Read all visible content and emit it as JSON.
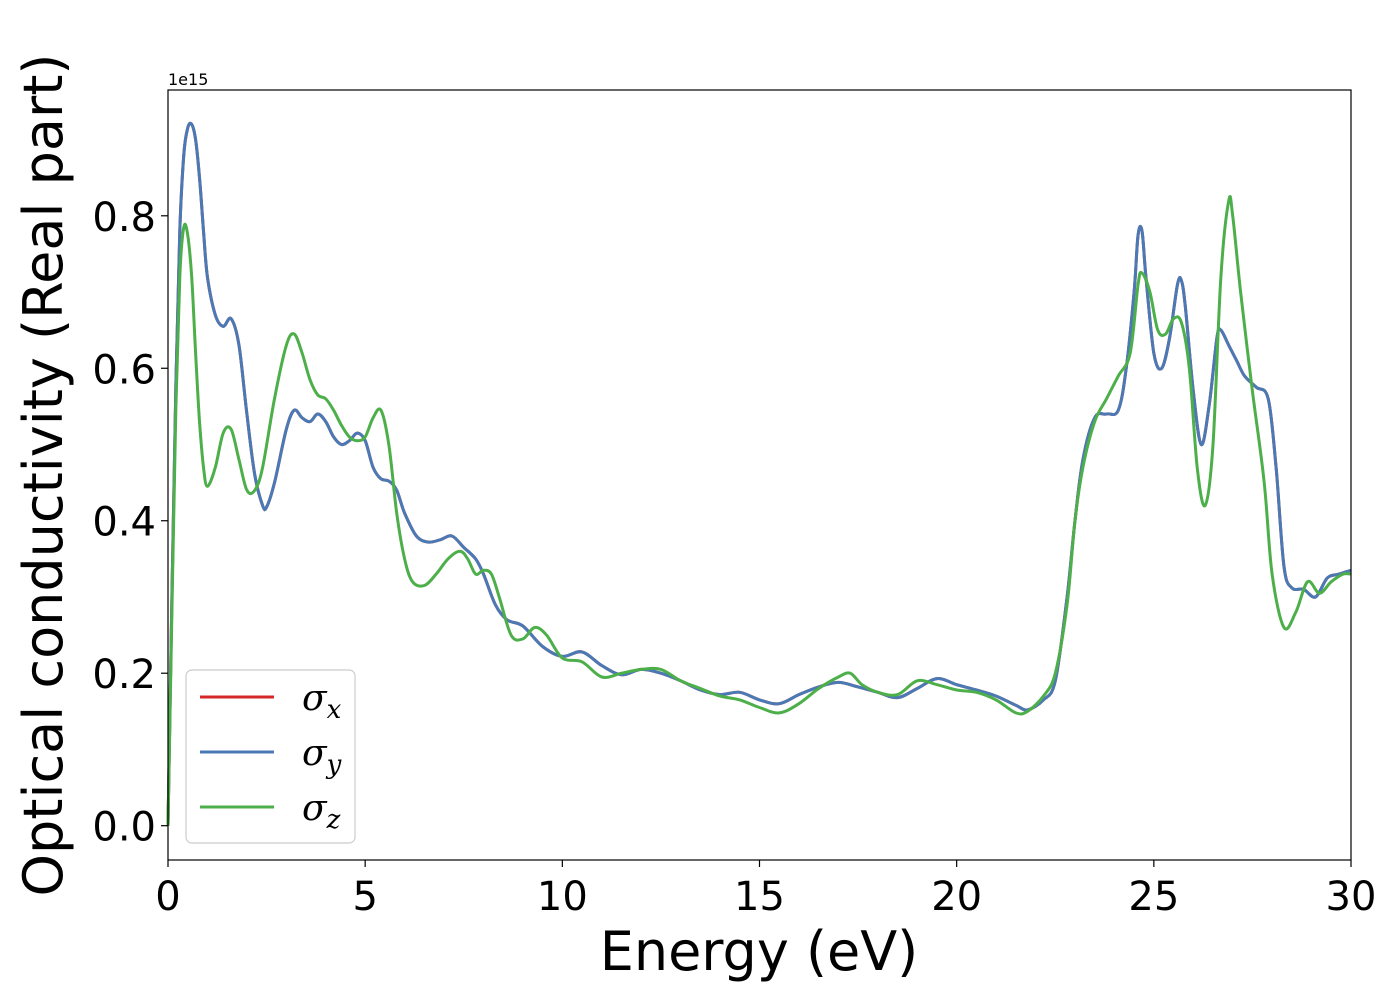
{
  "chart_data": {
    "type": "line",
    "xlabel": "Energy (eV)",
    "ylabel": "Optical conductivity (Real part)",
    "y_offset_label": "1e15",
    "xlim": [
      0,
      30
    ],
    "ylim": [
      -0.045,
      0.965
    ],
    "x_ticks": [
      0,
      5,
      10,
      15,
      20,
      25,
      30
    ],
    "x_tick_labels": [
      "0",
      "5",
      "10",
      "15",
      "20",
      "25",
      "30"
    ],
    "y_ticks": [
      0.0,
      0.2,
      0.4,
      0.6,
      0.8
    ],
    "y_tick_labels": [
      "0.0",
      "0.2",
      "0.4",
      "0.6",
      "0.8"
    ],
    "grid": false,
    "legend_position": "lower-left",
    "series": [
      {
        "name": "σx",
        "symbol": "σ",
        "subscript": "x",
        "color": "#d62728",
        "x": [
          0,
          0.1,
          0.2,
          0.3,
          0.4,
          0.5,
          0.6,
          0.7,
          0.8,
          0.9,
          1.0,
          1.2,
          1.4,
          1.6,
          1.8,
          2.0,
          2.2,
          2.4,
          2.5,
          2.7,
          3.0,
          3.2,
          3.4,
          3.6,
          3.8,
          4.0,
          4.2,
          4.4,
          4.6,
          4.8,
          5.0,
          5.2,
          5.4,
          5.6,
          5.8,
          6.0,
          6.3,
          6.6,
          6.9,
          7.2,
          7.5,
          7.8,
          8.0,
          8.3,
          8.6,
          9.0,
          9.5,
          10.0,
          10.5,
          11.0,
          11.5,
          12.0,
          12.5,
          13.0,
          13.5,
          14.0,
          14.5,
          15.0,
          15.5,
          16.0,
          16.5,
          17.0,
          17.5,
          18.0,
          18.5,
          19.0,
          19.5,
          20.0,
          20.5,
          21.0,
          21.5,
          21.8,
          22.2,
          22.5,
          22.8,
          23.0,
          23.2,
          23.5,
          23.8,
          24.1,
          24.3,
          24.5,
          24.6,
          24.7,
          24.8,
          25.0,
          25.2,
          25.4,
          25.6,
          25.7,
          25.8,
          26.0,
          26.2,
          26.4,
          26.6,
          26.7,
          26.9,
          27.1,
          27.3,
          27.6,
          27.9,
          28.1,
          28.3,
          28.5,
          28.8,
          29.1,
          29.4,
          29.7,
          30.0
        ],
        "y": [
          0.0,
          0.3,
          0.58,
          0.78,
          0.88,
          0.915,
          0.92,
          0.9,
          0.85,
          0.78,
          0.72,
          0.67,
          0.655,
          0.665,
          0.63,
          0.54,
          0.46,
          0.42,
          0.418,
          0.45,
          0.52,
          0.545,
          0.535,
          0.53,
          0.54,
          0.53,
          0.51,
          0.5,
          0.505,
          0.515,
          0.505,
          0.47,
          0.455,
          0.452,
          0.44,
          0.41,
          0.38,
          0.372,
          0.375,
          0.38,
          0.365,
          0.35,
          0.33,
          0.29,
          0.27,
          0.262,
          0.235,
          0.222,
          0.228,
          0.21,
          0.198,
          0.205,
          0.2,
          0.19,
          0.178,
          0.172,
          0.175,
          0.165,
          0.16,
          0.172,
          0.182,
          0.188,
          0.182,
          0.175,
          0.168,
          0.18,
          0.193,
          0.185,
          0.178,
          0.17,
          0.158,
          0.152,
          0.165,
          0.19,
          0.3,
          0.4,
          0.48,
          0.535,
          0.54,
          0.545,
          0.6,
          0.7,
          0.775,
          0.78,
          0.72,
          0.62,
          0.6,
          0.64,
          0.71,
          0.715,
          0.68,
          0.57,
          0.5,
          0.55,
          0.64,
          0.65,
          0.63,
          0.61,
          0.59,
          0.575,
          0.56,
          0.47,
          0.34,
          0.312,
          0.31,
          0.3,
          0.325,
          0.33,
          0.335
        ]
      },
      {
        "name": "σy",
        "symbol": "σ",
        "subscript": "y",
        "color": "#4a7ab5",
        "x": [
          0,
          0.1,
          0.2,
          0.3,
          0.4,
          0.5,
          0.6,
          0.7,
          0.8,
          0.9,
          1.0,
          1.2,
          1.4,
          1.6,
          1.8,
          2.0,
          2.2,
          2.4,
          2.5,
          2.7,
          3.0,
          3.2,
          3.4,
          3.6,
          3.8,
          4.0,
          4.2,
          4.4,
          4.6,
          4.8,
          5.0,
          5.2,
          5.4,
          5.6,
          5.8,
          6.0,
          6.3,
          6.6,
          6.9,
          7.2,
          7.5,
          7.8,
          8.0,
          8.3,
          8.6,
          9.0,
          9.5,
          10.0,
          10.5,
          11.0,
          11.5,
          12.0,
          12.5,
          13.0,
          13.5,
          14.0,
          14.5,
          15.0,
          15.5,
          16.0,
          16.5,
          17.0,
          17.5,
          18.0,
          18.5,
          19.0,
          19.5,
          20.0,
          20.5,
          21.0,
          21.5,
          21.8,
          22.2,
          22.5,
          22.8,
          23.0,
          23.2,
          23.5,
          23.8,
          24.1,
          24.3,
          24.5,
          24.6,
          24.7,
          24.8,
          25.0,
          25.2,
          25.4,
          25.6,
          25.7,
          25.8,
          26.0,
          26.2,
          26.4,
          26.6,
          26.7,
          26.9,
          27.1,
          27.3,
          27.6,
          27.9,
          28.1,
          28.3,
          28.5,
          28.8,
          29.1,
          29.4,
          29.7,
          30.0
        ],
        "y": [
          0.0,
          0.3,
          0.58,
          0.78,
          0.88,
          0.915,
          0.92,
          0.9,
          0.85,
          0.78,
          0.72,
          0.67,
          0.655,
          0.665,
          0.63,
          0.54,
          0.46,
          0.42,
          0.418,
          0.45,
          0.52,
          0.545,
          0.535,
          0.53,
          0.54,
          0.53,
          0.51,
          0.5,
          0.505,
          0.515,
          0.505,
          0.47,
          0.455,
          0.452,
          0.44,
          0.41,
          0.38,
          0.372,
          0.375,
          0.38,
          0.365,
          0.35,
          0.33,
          0.29,
          0.27,
          0.262,
          0.235,
          0.222,
          0.228,
          0.21,
          0.198,
          0.205,
          0.2,
          0.19,
          0.178,
          0.172,
          0.175,
          0.165,
          0.16,
          0.172,
          0.182,
          0.188,
          0.182,
          0.175,
          0.168,
          0.18,
          0.193,
          0.185,
          0.178,
          0.17,
          0.158,
          0.152,
          0.165,
          0.19,
          0.3,
          0.4,
          0.48,
          0.535,
          0.54,
          0.545,
          0.6,
          0.7,
          0.775,
          0.78,
          0.72,
          0.62,
          0.6,
          0.64,
          0.71,
          0.715,
          0.68,
          0.57,
          0.5,
          0.55,
          0.64,
          0.65,
          0.63,
          0.61,
          0.59,
          0.575,
          0.56,
          0.47,
          0.34,
          0.312,
          0.31,
          0.3,
          0.325,
          0.33,
          0.335
        ]
      },
      {
        "name": "σz",
        "symbol": "σ",
        "subscript": "z",
        "color": "#4daf4a",
        "x": [
          0,
          0.1,
          0.2,
          0.3,
          0.4,
          0.5,
          0.6,
          0.7,
          0.8,
          0.9,
          1.0,
          1.2,
          1.4,
          1.6,
          1.8,
          2.0,
          2.2,
          2.4,
          2.7,
          3.0,
          3.2,
          3.4,
          3.6,
          3.8,
          4.0,
          4.2,
          4.4,
          4.6,
          4.8,
          5.0,
          5.2,
          5.4,
          5.6,
          5.8,
          6.0,
          6.2,
          6.5,
          6.8,
          7.1,
          7.4,
          7.6,
          7.8,
          8.0,
          8.2,
          8.4,
          8.7,
          9.0,
          9.3,
          9.6,
          10.0,
          10.5,
          11.0,
          11.5,
          12.0,
          12.5,
          13.0,
          13.5,
          14.0,
          14.5,
          15.0,
          15.5,
          16.0,
          16.5,
          17.0,
          17.3,
          17.6,
          18.0,
          18.5,
          19.0,
          19.5,
          20.0,
          20.5,
          21.0,
          21.5,
          21.8,
          22.2,
          22.5,
          22.8,
          23.0,
          23.2,
          23.5,
          23.8,
          24.1,
          24.4,
          24.6,
          24.7,
          24.9,
          25.1,
          25.3,
          25.5,
          25.7,
          25.9,
          26.1,
          26.3,
          26.5,
          26.7,
          26.9,
          27.0,
          27.2,
          27.5,
          27.8,
          28.0,
          28.3,
          28.6,
          28.9,
          29.2,
          29.5,
          29.8,
          30.0
        ],
        "y": [
          0.0,
          0.28,
          0.55,
          0.72,
          0.785,
          0.775,
          0.72,
          0.62,
          0.53,
          0.47,
          0.445,
          0.47,
          0.515,
          0.52,
          0.48,
          0.44,
          0.44,
          0.47,
          0.56,
          0.63,
          0.645,
          0.62,
          0.585,
          0.565,
          0.56,
          0.545,
          0.525,
          0.51,
          0.505,
          0.51,
          0.535,
          0.545,
          0.5,
          0.41,
          0.35,
          0.32,
          0.315,
          0.33,
          0.35,
          0.36,
          0.35,
          0.33,
          0.335,
          0.33,
          0.3,
          0.25,
          0.245,
          0.26,
          0.25,
          0.22,
          0.215,
          0.195,
          0.2,
          0.205,
          0.205,
          0.19,
          0.18,
          0.17,
          0.165,
          0.155,
          0.148,
          0.16,
          0.18,
          0.195,
          0.2,
          0.185,
          0.175,
          0.172,
          0.19,
          0.185,
          0.178,
          0.175,
          0.165,
          0.148,
          0.15,
          0.17,
          0.2,
          0.29,
          0.4,
          0.47,
          0.53,
          0.56,
          0.59,
          0.62,
          0.71,
          0.725,
          0.7,
          0.65,
          0.645,
          0.665,
          0.66,
          0.6,
          0.47,
          0.42,
          0.5,
          0.72,
          0.82,
          0.8,
          0.7,
          0.57,
          0.45,
          0.33,
          0.26,
          0.28,
          0.32,
          0.305,
          0.32,
          0.33,
          0.33
        ]
      }
    ]
  }
}
